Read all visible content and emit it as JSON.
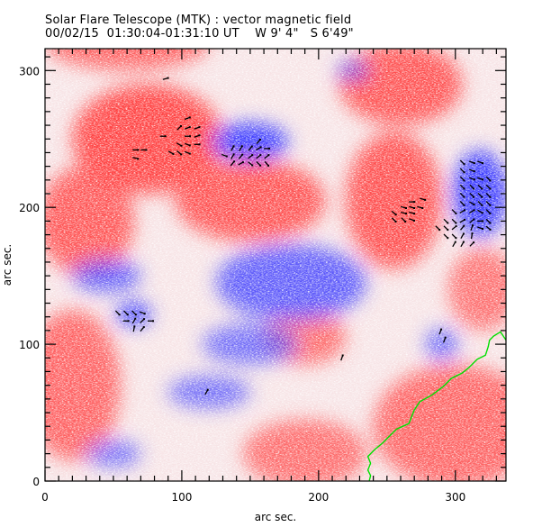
{
  "header": {
    "title": "Solar Flare Telescope (MTK) : vector magnetic field",
    "date": "00/02/15",
    "time_range": "01:30:04-01:31:10 UT",
    "longitude": "W 9' 4\"",
    "latitude": "S 6'49\""
  },
  "colors": {
    "positive": "#ff4040",
    "negative": "#3a3aff",
    "background": "#ffffff",
    "contour": "#00e000",
    "vector": "#000000"
  },
  "chart_data": {
    "type": "heatmap",
    "title": "Solar Flare Telescope (MTK) : vector magnetic field",
    "xlabel": "arc sec.",
    "ylabel": "arc sec.",
    "xlim": [
      0,
      337
    ],
    "ylim": [
      0,
      316
    ],
    "x_ticks": [
      0,
      100,
      200,
      300
    ],
    "y_ticks": [
      0,
      100,
      200,
      300
    ],
    "x_tick_labels": [
      "0",
      "100",
      "200",
      "300"
    ],
    "y_tick_labels": [
      "0",
      "100",
      "200",
      "300"
    ],
    "minor_tick_step": 10,
    "colormap": "red = positive polarity, blue = negative polarity",
    "regions": [
      {
        "polarity": "positive",
        "x": 75,
        "y": 250,
        "rx": 55,
        "ry": 40,
        "strength": 1.0
      },
      {
        "polarity": "positive",
        "x": 150,
        "y": 205,
        "rx": 55,
        "ry": 30,
        "strength": 0.8
      },
      {
        "polarity": "positive",
        "x": 30,
        "y": 190,
        "rx": 35,
        "ry": 40,
        "strength": 0.75
      },
      {
        "polarity": "positive",
        "x": 255,
        "y": 205,
        "rx": 35,
        "ry": 50,
        "strength": 0.85
      },
      {
        "polarity": "positive",
        "x": 260,
        "y": 290,
        "rx": 45,
        "ry": 30,
        "strength": 0.8
      },
      {
        "polarity": "positive",
        "x": 20,
        "y": 70,
        "rx": 35,
        "ry": 55,
        "strength": 0.6
      },
      {
        "polarity": "positive",
        "x": 300,
        "y": 40,
        "rx": 60,
        "ry": 45,
        "strength": 0.55
      },
      {
        "polarity": "positive",
        "x": 190,
        "y": 105,
        "rx": 30,
        "ry": 20,
        "strength": 0.45
      },
      {
        "polarity": "positive",
        "x": 190,
        "y": 20,
        "rx": 45,
        "ry": 25,
        "strength": 0.45
      },
      {
        "polarity": "positive",
        "x": 60,
        "y": 320,
        "rx": 60,
        "ry": 20,
        "strength": 0.55
      },
      {
        "polarity": "positive",
        "x": 320,
        "y": 140,
        "rx": 25,
        "ry": 30,
        "strength": 0.4
      },
      {
        "polarity": "negative",
        "x": 150,
        "y": 248,
        "rx": 28,
        "ry": 14,
        "strength": 1.0
      },
      {
        "polarity": "negative",
        "x": 318,
        "y": 210,
        "rx": 20,
        "ry": 32,
        "strength": 1.0
      },
      {
        "polarity": "negative",
        "x": 65,
        "y": 122,
        "rx": 13,
        "ry": 9,
        "strength": 0.95
      },
      {
        "polarity": "negative",
        "x": 45,
        "y": 150,
        "rx": 25,
        "ry": 12,
        "strength": 0.55
      },
      {
        "polarity": "negative",
        "x": 180,
        "y": 145,
        "rx": 55,
        "ry": 28,
        "strength": 0.6
      },
      {
        "polarity": "negative",
        "x": 150,
        "y": 100,
        "rx": 35,
        "ry": 15,
        "strength": 0.35
      },
      {
        "polarity": "negative",
        "x": 120,
        "y": 65,
        "rx": 30,
        "ry": 12,
        "strength": 0.35
      },
      {
        "polarity": "negative",
        "x": 290,
        "y": 100,
        "rx": 12,
        "ry": 12,
        "strength": 0.4
      },
      {
        "polarity": "negative",
        "x": 225,
        "y": 300,
        "rx": 12,
        "ry": 7,
        "strength": 0.4
      },
      {
        "polarity": "negative",
        "x": 50,
        "y": 20,
        "rx": 20,
        "ry": 10,
        "strength": 0.3
      }
    ],
    "vectors": [
      {
        "x": 88,
        "y": 294,
        "angle": 15
      },
      {
        "x": 104,
        "y": 265,
        "angle": 20
      },
      {
        "x": 98,
        "y": 258,
        "angle": 45
      },
      {
        "x": 104,
        "y": 258,
        "angle": 20
      },
      {
        "x": 111,
        "y": 258,
        "angle": 20
      },
      {
        "x": 86,
        "y": 252,
        "angle": 0
      },
      {
        "x": 104,
        "y": 252,
        "angle": 0
      },
      {
        "x": 111,
        "y": 252,
        "angle": 20
      },
      {
        "x": 98,
        "y": 246,
        "angle": -30
      },
      {
        "x": 104,
        "y": 246,
        "angle": -20
      },
      {
        "x": 111,
        "y": 246,
        "angle": 0
      },
      {
        "x": 66,
        "y": 242,
        "angle": 0
      },
      {
        "x": 72,
        "y": 242,
        "angle": 0
      },
      {
        "x": 92,
        "y": 240,
        "angle": -30
      },
      {
        "x": 98,
        "y": 240,
        "angle": -40
      },
      {
        "x": 104,
        "y": 240,
        "angle": -20
      },
      {
        "x": 66,
        "y": 236,
        "angle": -15
      },
      {
        "x": 131,
        "y": 238,
        "angle": -20
      },
      {
        "x": 137,
        "y": 243,
        "angle": 60
      },
      {
        "x": 143,
        "y": 243,
        "angle": 60
      },
      {
        "x": 150,
        "y": 243,
        "angle": 50
      },
      {
        "x": 156,
        "y": 243,
        "angle": 30
      },
      {
        "x": 162,
        "y": 243,
        "angle": 0
      },
      {
        "x": 137,
        "y": 237,
        "angle": 60
      },
      {
        "x": 143,
        "y": 237,
        "angle": 50
      },
      {
        "x": 150,
        "y": 237,
        "angle": 40
      },
      {
        "x": 156,
        "y": 237,
        "angle": 40
      },
      {
        "x": 162,
        "y": 237,
        "angle": 40
      },
      {
        "x": 137,
        "y": 232,
        "angle": 50
      },
      {
        "x": 143,
        "y": 232,
        "angle": 30
      },
      {
        "x": 150,
        "y": 232,
        "angle": -40
      },
      {
        "x": 156,
        "y": 232,
        "angle": -45
      },
      {
        "x": 156,
        "y": 248,
        "angle": 50
      },
      {
        "x": 162,
        "y": 232,
        "angle": -50
      },
      {
        "x": 276,
        "y": 206,
        "angle": -15
      },
      {
        "x": 268,
        "y": 204,
        "angle": 0
      },
      {
        "x": 262,
        "y": 200,
        "angle": -15
      },
      {
        "x": 268,
        "y": 200,
        "angle": -15
      },
      {
        "x": 274,
        "y": 200,
        "angle": -15
      },
      {
        "x": 255,
        "y": 196,
        "angle": -40
      },
      {
        "x": 262,
        "y": 196,
        "angle": -15
      },
      {
        "x": 268,
        "y": 196,
        "angle": -15
      },
      {
        "x": 255,
        "y": 191,
        "angle": -45
      },
      {
        "x": 262,
        "y": 191,
        "angle": -45
      },
      {
        "x": 268,
        "y": 191,
        "angle": -20
      },
      {
        "x": 305,
        "y": 233,
        "angle": -45
      },
      {
        "x": 312,
        "y": 233,
        "angle": -20
      },
      {
        "x": 318,
        "y": 233,
        "angle": -20
      },
      {
        "x": 305,
        "y": 227,
        "angle": -45
      },
      {
        "x": 312,
        "y": 227,
        "angle": -20
      },
      {
        "x": 305,
        "y": 221,
        "angle": -45
      },
      {
        "x": 312,
        "y": 221,
        "angle": -20
      },
      {
        "x": 318,
        "y": 221,
        "angle": -20
      },
      {
        "x": 324,
        "y": 221,
        "angle": -45
      },
      {
        "x": 305,
        "y": 215,
        "angle": -45
      },
      {
        "x": 312,
        "y": 215,
        "angle": -45
      },
      {
        "x": 318,
        "y": 215,
        "angle": -45
      },
      {
        "x": 324,
        "y": 215,
        "angle": -45
      },
      {
        "x": 305,
        "y": 209,
        "angle": -45
      },
      {
        "x": 312,
        "y": 209,
        "angle": -45
      },
      {
        "x": 318,
        "y": 209,
        "angle": -45
      },
      {
        "x": 324,
        "y": 209,
        "angle": -45
      },
      {
        "x": 305,
        "y": 203,
        "angle": -45
      },
      {
        "x": 312,
        "y": 203,
        "angle": -30
      },
      {
        "x": 318,
        "y": 203,
        "angle": -45
      },
      {
        "x": 324,
        "y": 203,
        "angle": -45
      },
      {
        "x": 299,
        "y": 197,
        "angle": -45
      },
      {
        "x": 305,
        "y": 197,
        "angle": 30
      },
      {
        "x": 312,
        "y": 197,
        "angle": 30
      },
      {
        "x": 318,
        "y": 197,
        "angle": -30
      },
      {
        "x": 324,
        "y": 197,
        "angle": -45
      },
      {
        "x": 293,
        "y": 190,
        "angle": -45
      },
      {
        "x": 299,
        "y": 190,
        "angle": -45
      },
      {
        "x": 305,
        "y": 190,
        "angle": 30
      },
      {
        "x": 312,
        "y": 190,
        "angle": 40
      },
      {
        "x": 318,
        "y": 190,
        "angle": 0
      },
      {
        "x": 324,
        "y": 190,
        "angle": -45
      },
      {
        "x": 287,
        "y": 185,
        "angle": -45
      },
      {
        "x": 293,
        "y": 185,
        "angle": -45
      },
      {
        "x": 299,
        "y": 185,
        "angle": 40
      },
      {
        "x": 305,
        "y": 185,
        "angle": 50
      },
      {
        "x": 312,
        "y": 185,
        "angle": 70
      },
      {
        "x": 318,
        "y": 185,
        "angle": -20
      },
      {
        "x": 324,
        "y": 185,
        "angle": -40
      },
      {
        "x": 293,
        "y": 179,
        "angle": -45
      },
      {
        "x": 299,
        "y": 179,
        "angle": -45
      },
      {
        "x": 305,
        "y": 179,
        "angle": 60
      },
      {
        "x": 312,
        "y": 179,
        "angle": 80
      },
      {
        "x": 299,
        "y": 173,
        "angle": 60
      },
      {
        "x": 305,
        "y": 173,
        "angle": 60
      },
      {
        "x": 312,
        "y": 173,
        "angle": 45
      },
      {
        "x": 53,
        "y": 123,
        "angle": -45
      },
      {
        "x": 59,
        "y": 123,
        "angle": -45
      },
      {
        "x": 65,
        "y": 123,
        "angle": -45
      },
      {
        "x": 71,
        "y": 123,
        "angle": -20
      },
      {
        "x": 59,
        "y": 117,
        "angle": 0
      },
      {
        "x": 65,
        "y": 117,
        "angle": 60
      },
      {
        "x": 71,
        "y": 117,
        "angle": 45
      },
      {
        "x": 77,
        "y": 117,
        "angle": 0
      },
      {
        "x": 65,
        "y": 111,
        "angle": 80
      },
      {
        "x": 71,
        "y": 111,
        "angle": 50
      },
      {
        "x": 289,
        "y": 109,
        "angle": 70
      },
      {
        "x": 292,
        "y": 103,
        "angle": 70
      },
      {
        "x": 217,
        "y": 90,
        "angle": 70
      },
      {
        "x": 118,
        "y": 65,
        "angle": 60
      }
    ],
    "contour": {
      "color": "green",
      "points": [
        [
          237,
          0
        ],
        [
          238,
          4
        ],
        [
          236,
          8
        ],
        [
          238,
          13
        ],
        [
          236,
          18
        ],
        [
          241,
          23
        ],
        [
          247,
          28
        ],
        [
          251,
          32
        ],
        [
          257,
          38
        ],
        [
          266,
          42
        ],
        [
          268,
          47
        ],
        [
          270,
          52
        ],
        [
          274,
          58
        ],
        [
          283,
          63
        ],
        [
          291,
          69
        ],
        [
          297,
          75
        ],
        [
          305,
          79
        ],
        [
          310,
          83
        ],
        [
          316,
          89
        ],
        [
          322,
          92
        ],
        [
          324,
          98
        ],
        [
          325,
          103
        ],
        [
          328,
          106
        ],
        [
          333,
          109
        ],
        [
          335,
          106
        ],
        [
          337,
          103
        ]
      ]
    }
  }
}
